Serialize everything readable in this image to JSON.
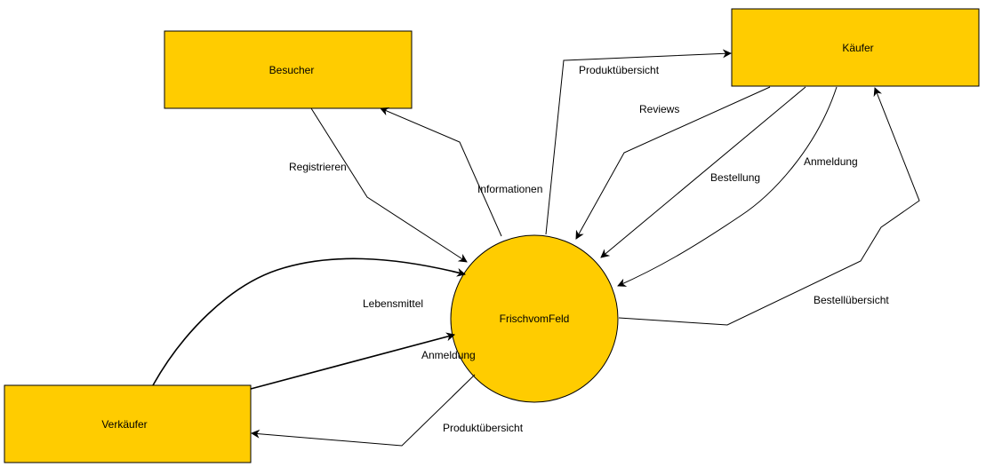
{
  "diagram": {
    "type": "context-diagram",
    "fill_color": "#ffcc00",
    "stroke_color": "#000000",
    "nodes": {
      "besucher": {
        "label": "Besucher",
        "shape": "rectangle"
      },
      "kaeufer": {
        "label": "Käufer",
        "shape": "rectangle"
      },
      "verkaeufer": {
        "label": "Verkäufer",
        "shape": "rectangle"
      },
      "system": {
        "label": "FrischvomFeld",
        "shape": "circle"
      }
    },
    "edges": {
      "registrieren": {
        "label": "Registrieren",
        "from": "Besucher",
        "to": "FrischvomFeld"
      },
      "informationen": {
        "label": "Informationen",
        "from": "FrischvomFeld",
        "to": "Besucher"
      },
      "produktuebersicht_kaeufer": {
        "label": "Produktübersicht",
        "from": "FrischvomFeld",
        "to": "Käufer"
      },
      "reviews": {
        "label": "Reviews",
        "from": "Käufer",
        "to": "FrischvomFeld"
      },
      "bestellung": {
        "label": "Bestellung",
        "from": "Käufer",
        "to": "FrischvomFeld"
      },
      "anmeldung_kaeufer": {
        "label": "Anmeldung",
        "from": "Käufer",
        "to": "FrischvomFeld"
      },
      "bestelluebersicht": {
        "label": "Bestellübersicht",
        "from": "FrischvomFeld",
        "to": "Käufer"
      },
      "lebensmittel": {
        "label": "Lebensmittel",
        "from": "Verkäufer",
        "to": "FrischvomFeld"
      },
      "anmeldung_verkaeufer": {
        "label": "Anmeldung",
        "from": "Verkäufer",
        "to": "FrischvomFeld"
      },
      "produktuebersicht_verkaeufer": {
        "label": "Produktübersicht",
        "from": "FrischvomFeld",
        "to": "Verkäufer"
      }
    }
  }
}
